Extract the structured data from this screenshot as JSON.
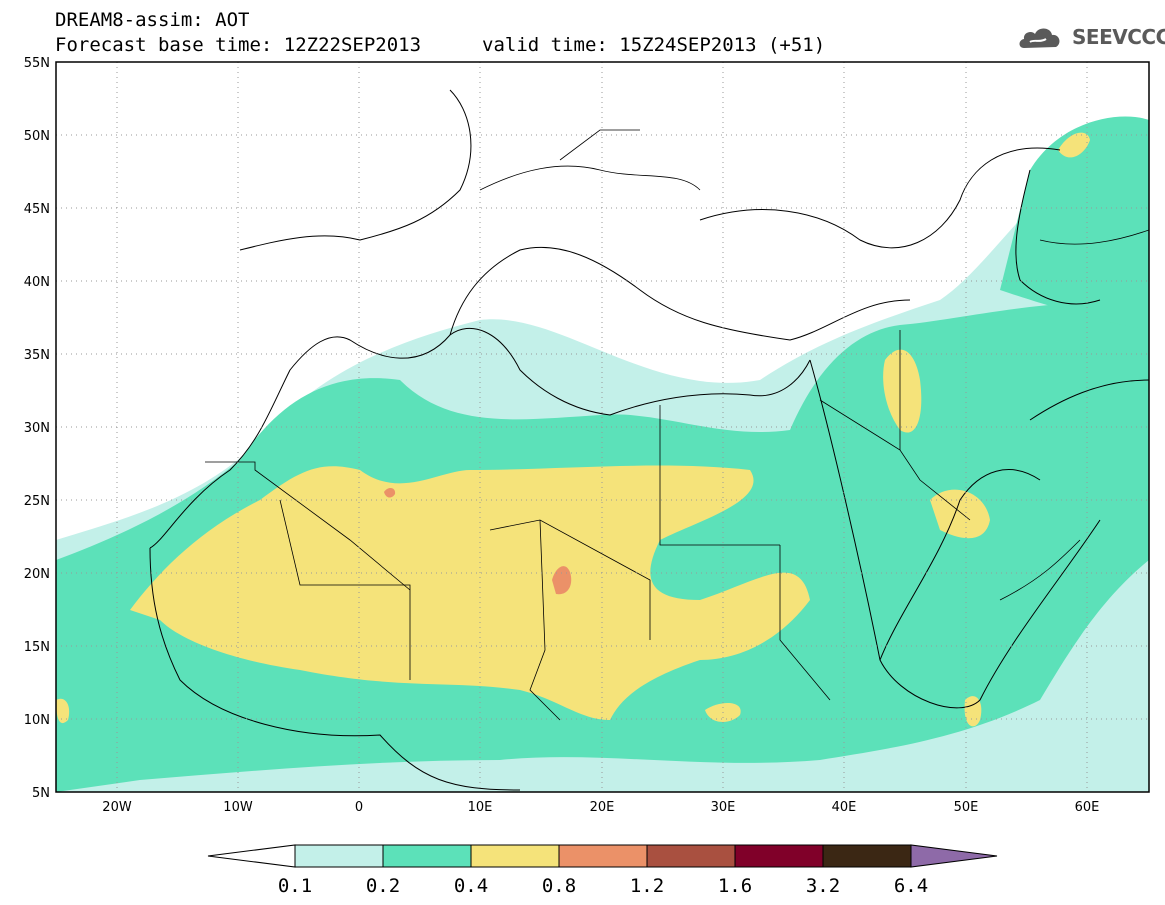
{
  "header": {
    "line1": "DREAM8-assim: AOT",
    "line2": "Forecast base time: 12Z22SEP2013",
    "valid": "valid time: 15Z24SEP2013 (+51)"
  },
  "logo": {
    "text": "SEEVCCC",
    "icon": "cloud-icon"
  },
  "map": {
    "lat_ticks": [
      "55N",
      "50N",
      "45N",
      "40N",
      "35N",
      "30N",
      "25N",
      "20N",
      "15N",
      "10N",
      "5N"
    ],
    "lon_ticks": [
      "20W",
      "10W",
      "0",
      "10E",
      "20E",
      "30E",
      "40E",
      "50E",
      "60E"
    ],
    "lon_range": [
      -25,
      65
    ],
    "lat_range": [
      5,
      55
    ]
  },
  "colorbar": {
    "labels": [
      "0.1",
      "0.2",
      "0.4",
      "0.8",
      "1.2",
      "1.6",
      "3.2",
      "6.4"
    ],
    "colors": [
      "#c3f0e9",
      "#5ce1b9",
      "#f5e37a",
      "#eb9168",
      "#a95040",
      "#800029",
      "#3b2714"
    ],
    "over_color": "#8e6aa8",
    "under_color": "#ffffff"
  }
}
